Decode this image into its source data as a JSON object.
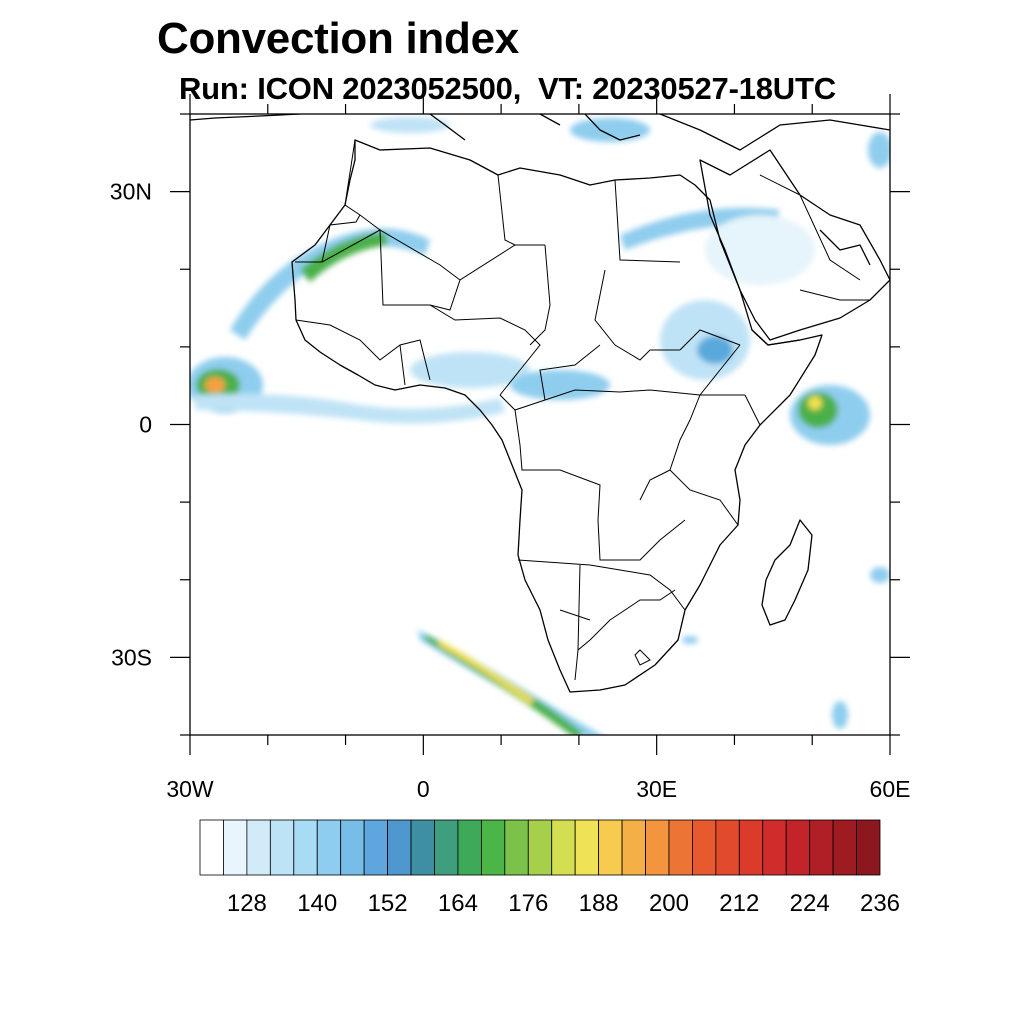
{
  "header": {
    "title": "Convection index",
    "subtitle": "Run: ICON 2023052500,  VT: 20230527-18UTC"
  },
  "map": {
    "lon_range": [
      -30,
      60
    ],
    "lat_range": [
      -40,
      40
    ],
    "x_ticks": [
      {
        "lon": -30,
        "label": "30W"
      },
      {
        "lon": 0,
        "label": "0"
      },
      {
        "lon": 30,
        "label": "30E"
      },
      {
        "lon": 60,
        "label": "60E"
      }
    ],
    "y_ticks": [
      {
        "lat": 30,
        "label": "30N"
      },
      {
        "lat": 0,
        "label": "0"
      },
      {
        "lat": -30,
        "label": "30S"
      }
    ],
    "border_color": "#000000",
    "field_colors": [
      "#e6f4fb",
      "#bfe3f6",
      "#8fcdee",
      "#5aa9dc",
      "#4a9a8a",
      "#4cb04a",
      "#a8d04a",
      "#f0e050",
      "#f5a040",
      "#e05030"
    ]
  },
  "colorbar": {
    "colors": [
      "#ffffff",
      "#e9f5fc",
      "#d2ebf8",
      "#bde3f6",
      "#a7dcf4",
      "#8ecdef",
      "#78bde8",
      "#5ea7de",
      "#4f97cf",
      "#3f8fa4",
      "#3e9e7e",
      "#3fa95a",
      "#4cb548",
      "#7cc24a",
      "#a6cf4a",
      "#d3de50",
      "#f0e256",
      "#f6cb4e",
      "#f4b046",
      "#f2953e",
      "#ec7536",
      "#e65a2e",
      "#e24a2c",
      "#da3b2b",
      "#d12c2c",
      "#c2242a",
      "#b01f26",
      "#9e1b22",
      "#8c171e"
    ],
    "labels": [
      "128",
      "140",
      "152",
      "164",
      "176",
      "188",
      "200",
      "212",
      "224",
      "236"
    ]
  }
}
